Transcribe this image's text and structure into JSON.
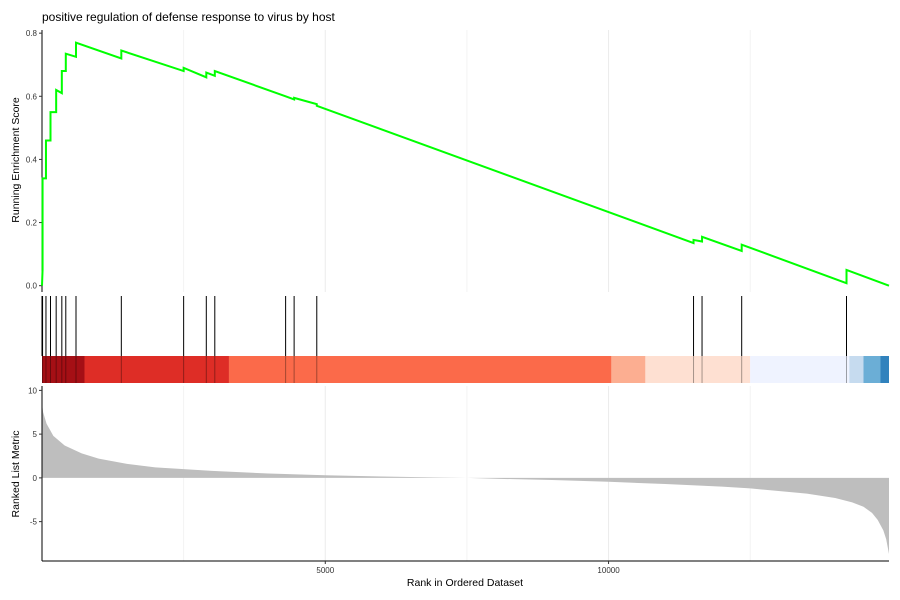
{
  "chart_data": {
    "type": "line",
    "title": "positive regulation of defense response to virus by host",
    "xlabel": "Rank in Ordered Dataset",
    "xlim": [
      0,
      14950
    ],
    "x_ticks": [
      5000,
      10000
    ],
    "grid": true,
    "legend": "none",
    "panels": {
      "running_score": {
        "ylabel": "Running Enrichment Score",
        "ylim": [
          -0.02,
          0.81
        ],
        "y_ticks": [
          0.0,
          0.2,
          0.4,
          0.6,
          0.8
        ],
        "line_color": "#00ff00",
        "series": [
          {
            "x": [
              0,
              10,
              10,
              70,
              70,
              150,
              150,
              250,
              250,
              350,
              350,
              420,
              420,
              600,
              600,
              1400,
              1400,
              2500,
              2500,
              2900,
              2900,
              3050,
              3050,
              4300,
              4300,
              4450,
              4450,
              4850,
              4850,
              11500,
              11500,
              11650,
              11650,
              12350,
              12350,
              14200,
              14200,
              14950
            ],
            "y": [
              0.0,
              0.05,
              0.34,
              0.34,
              0.46,
              0.46,
              0.55,
              0.55,
              0.62,
              0.61,
              0.68,
              0.68,
              0.735,
              0.725,
              0.77,
              0.72,
              0.745,
              0.68,
              0.69,
              0.66,
              0.675,
              0.665,
              0.68,
              0.6,
              0.6,
              0.59,
              0.595,
              0.575,
              0.57,
              0.135,
              0.145,
              0.14,
              0.155,
              0.11,
              0.13,
              0.008,
              0.05,
              0.0
            ]
          }
        ]
      },
      "hits": {
        "x": [
          10,
          70,
          150,
          250,
          350,
          420,
          600,
          1400,
          2500,
          2900,
          3050,
          4300,
          4450,
          4850,
          11500,
          11650,
          12350,
          14200
        ]
      },
      "ranked_metric": {
        "ylabel": "Ranked List Metric",
        "ylim": [
          -9.5,
          10.5
        ],
        "y_ticks": [
          -5,
          0,
          5,
          10
        ],
        "fill_color": "#bebebe",
        "x": [
          0,
          20,
          80,
          200,
          400,
          700,
          1000,
          1500,
          2000,
          3000,
          4000,
          5000,
          6000,
          7000,
          7500,
          8000,
          9000,
          10000,
          11000,
          12000,
          12500,
          13000,
          13500,
          14000,
          14300,
          14500,
          14650,
          14750,
          14850,
          14900,
          14950
        ],
        "y": [
          8.5,
          7.5,
          6.2,
          4.8,
          3.7,
          2.8,
          2.2,
          1.6,
          1.2,
          0.8,
          0.5,
          0.3,
          0.15,
          0.05,
          0.0,
          -0.1,
          -0.25,
          -0.45,
          -0.7,
          -1.0,
          -1.2,
          -1.5,
          -1.8,
          -2.3,
          -2.8,
          -3.3,
          -4.0,
          -4.8,
          -6.0,
          -7.0,
          -8.7
        ]
      },
      "color_band": [
        {
          "x0": 0,
          "x1": 750,
          "color": "#a50f15"
        },
        {
          "x0": 750,
          "x1": 3300,
          "color": "#de2d26"
        },
        {
          "x0": 3300,
          "x1": 10050,
          "color": "#fb6a4a"
        },
        {
          "x0": 10050,
          "x1": 10650,
          "color": "#fcae91"
        },
        {
          "x0": 10650,
          "x1": 12500,
          "color": "#fee0d2"
        },
        {
          "x0": 12500,
          "x1": 14250,
          "color": "#eff3ff"
        },
        {
          "x0": 14250,
          "x1": 14500,
          "color": "#c6dbef"
        },
        {
          "x0": 14500,
          "x1": 14800,
          "color": "#6baed6"
        },
        {
          "x0": 14800,
          "x1": 14950,
          "color": "#3182bd"
        }
      ]
    }
  }
}
